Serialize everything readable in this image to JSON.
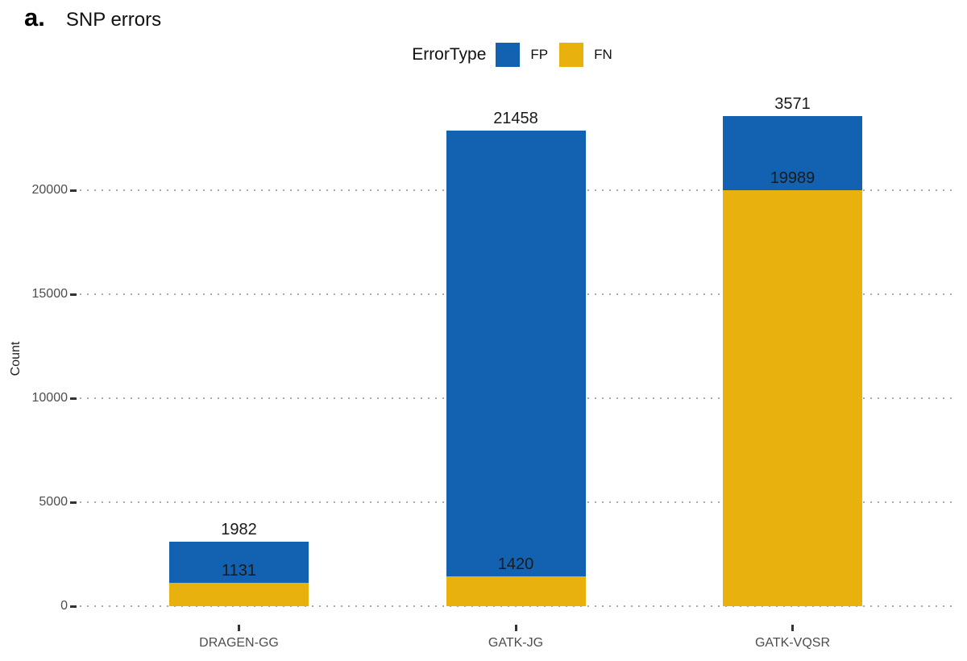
{
  "panel_label": "a.",
  "title": "SNP errors",
  "legend": {
    "title": "ErrorType",
    "items": [
      {
        "label": "FP",
        "color": "#1262B1"
      },
      {
        "label": "FN",
        "color": "#E8B10D"
      }
    ]
  },
  "y_axis_title": "Count",
  "chart_data": {
    "type": "bar",
    "stacked": true,
    "title": "SNP errors",
    "xlabel": "",
    "ylabel": "Count",
    "categories": [
      "DRAGEN-GG",
      "GATK-JG",
      "GATK-VQSR"
    ],
    "series": [
      {
        "name": "FN",
        "color": "#E8B10D",
        "values": [
          1131,
          1420,
          19989
        ]
      },
      {
        "name": "FP",
        "color": "#1262B1",
        "values": [
          1982,
          21458,
          3571
        ]
      }
    ],
    "stack_totals": [
      3113,
      22878,
      23560
    ],
    "yticks": [
      0,
      5000,
      10000,
      15000,
      20000
    ],
    "ylim": [
      0,
      24000
    ],
    "grid": "horizontal-dotted-major-only",
    "legend_position": "top-center",
    "bar_labels": "each segment value printed above its segment top"
  },
  "colors": {
    "fp_blue": "#1262B1",
    "fn_gold": "#E8B10D",
    "gridline": "#ABABAB",
    "axis_text": "#4D4D4D",
    "tick_mark": "#333333",
    "value_label_text": "#1A1A1A",
    "background": "#FFFFFF"
  }
}
